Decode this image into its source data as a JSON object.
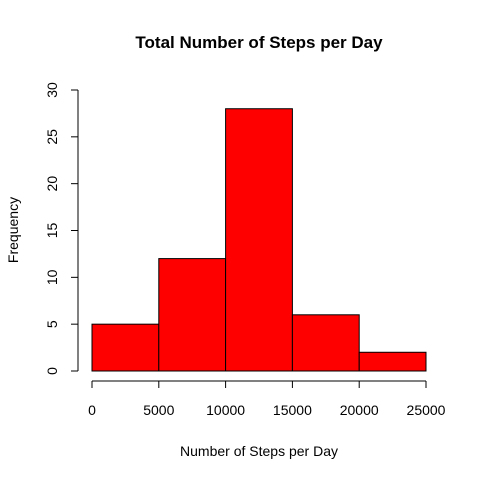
{
  "chart_data": {
    "type": "bar",
    "title": "Total Number of Steps per Day",
    "xlabel": "Number of Steps per Day",
    "ylabel": "Frequency",
    "bins": [
      {
        "start": 0,
        "end": 5000,
        "count": 5
      },
      {
        "start": 5000,
        "end": 10000,
        "count": 12
      },
      {
        "start": 10000,
        "end": 15000,
        "count": 28
      },
      {
        "start": 15000,
        "end": 20000,
        "count": 6
      },
      {
        "start": 20000,
        "end": 25000,
        "count": 2
      }
    ],
    "x_ticks": [
      "0",
      "5000",
      "10000",
      "15000",
      "20000",
      "25000"
    ],
    "y_ticks": [
      "0",
      "5",
      "10",
      "15",
      "20",
      "25",
      "30"
    ],
    "xlim": [
      0,
      25000
    ],
    "ylim": [
      0,
      30
    ],
    "grid": false,
    "legend": "none",
    "bar_color": "#ff0000",
    "bar_border_color": "#000000"
  }
}
